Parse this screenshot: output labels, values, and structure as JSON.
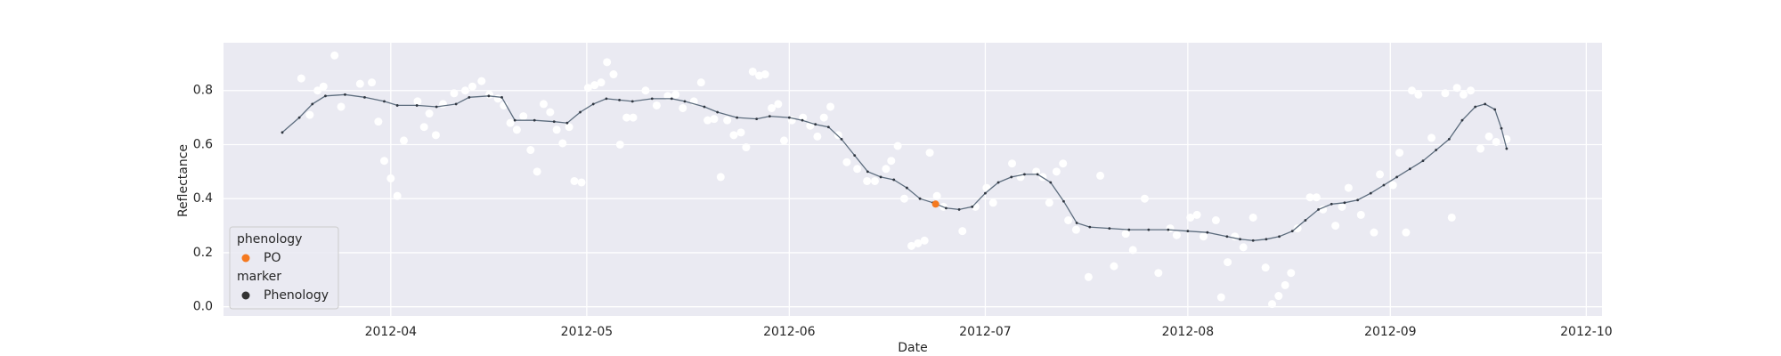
{
  "chart_data": {
    "type": "scatter",
    "xlabel": "Date",
    "ylabel": "Reflectance",
    "xlim": [
      -25.6,
      185.4
    ],
    "ylim": [
      -0.034,
      0.977
    ],
    "xticks": [
      {
        "value": 0,
        "label": "2012-04"
      },
      {
        "value": 30,
        "label": "2012-05"
      },
      {
        "value": 61,
        "label": "2012-06"
      },
      {
        "value": 91,
        "label": "2012-07"
      },
      {
        "value": 122,
        "label": "2012-08"
      },
      {
        "value": 153,
        "label": "2012-09"
      },
      {
        "value": 183,
        "label": "2012-10"
      }
    ],
    "yticks": [
      {
        "value": 0,
        "label": "0.0"
      },
      0.2,
      0.4,
      0.6,
      0.8
    ],
    "grid": true,
    "background": "#eaeaf2",
    "observations": {
      "color": "#ffffff",
      "x": [
        -13.7,
        -12.4,
        -11.2,
        -10.3,
        -8.6,
        -7.6,
        -4.7,
        -2.9,
        -1.9,
        -1.0,
        0,
        1.0,
        2.0,
        4.1,
        5.1,
        5.9,
        6.9,
        8.0,
        9.7,
        11.4,
        12.5,
        13.9,
        15.1,
        16.4,
        17.3,
        18.3,
        19.3,
        20.3,
        21.4,
        22.4,
        23.4,
        24.4,
        25.4,
        26.3,
        27.3,
        28.1,
        29.2,
        30.2,
        31.2,
        32.2,
        33.1,
        34.1,
        35.1,
        36.1,
        37.1,
        39.0,
        40.7,
        42.4,
        43.6,
        44.7,
        46.4,
        47.5,
        48.5,
        49.5,
        50.5,
        51.5,
        52.5,
        53.6,
        54.4,
        55.4,
        56.4,
        57.3,
        58.3,
        59.3,
        60.2,
        61.4,
        63.1,
        64.2,
        65.3,
        66.3,
        67.3,
        68.5,
        69.8,
        71.4,
        72.9,
        74.1,
        75.8,
        76.6,
        77.6,
        78.6,
        79.7,
        80.7,
        81.7,
        82.5,
        83.6,
        84.6,
        87.5,
        89.5,
        91.2,
        92.2,
        95.1,
        96.4,
        98.8,
        99.8,
        100.8,
        101.9,
        102.9,
        103.7,
        104.9,
        106.8,
        108.6,
        110.7,
        112.5,
        113.6,
        115.4,
        117.5,
        119.3,
        120.3,
        122.4,
        123.4,
        124.4,
        126.3,
        127.1,
        128.1,
        129.2,
        130.5,
        132.0,
        133.9,
        134.9,
        135.9,
        136.9,
        137.8,
        138.8,
        140.7,
        141.7,
        142.7,
        144.6,
        145.6,
        146.6,
        148.5,
        150.5,
        151.4,
        153.4,
        154.4,
        155.4,
        156.3,
        157.3,
        159.3,
        161.4,
        162.4,
        163.2,
        164.2,
        165.3,
        166.8,
        168.1,
        169.2,
        170.8
      ],
      "values": [
        0.845,
        0.71,
        0.8,
        0.815,
        0.93,
        0.74,
        0.825,
        0.83,
        0.685,
        0.54,
        0.475,
        0.41,
        0.615,
        0.76,
        0.665,
        0.715,
        0.635,
        0.75,
        0.79,
        0.8,
        0.815,
        0.835,
        0.785,
        0.77,
        0.745,
        0.68,
        0.655,
        0.705,
        0.58,
        0.5,
        0.75,
        0.72,
        0.655,
        0.605,
        0.665,
        0.465,
        0.46,
        0.81,
        0.82,
        0.83,
        0.905,
        0.86,
        0.6,
        0.7,
        0.7,
        0.8,
        0.745,
        0.78,
        0.785,
        0.735,
        0.76,
        0.83,
        0.69,
        0.695,
        0.48,
        0.69,
        0.635,
        0.645,
        0.59,
        0.87,
        0.855,
        0.86,
        0.735,
        0.75,
        0.615,
        0.69,
        0.7,
        0.67,
        0.63,
        0.7,
        0.74,
        0.635,
        0.535,
        0.51,
        0.465,
        0.465,
        0.51,
        0.54,
        0.595,
        0.4,
        0.225,
        0.235,
        0.245,
        0.57,
        0.41,
        0.37,
        0.28,
        0.37,
        0.44,
        0.385,
        0.53,
        0.48,
        0.5,
        0.48,
        0.385,
        0.5,
        0.53,
        0.32,
        0.285,
        0.11,
        0.485,
        0.15,
        0.27,
        0.21,
        0.4,
        0.125,
        0.29,
        0.265,
        0.33,
        0.34,
        0.26,
        0.32,
        0.035,
        0.165,
        0.26,
        0.22,
        0.33,
        0.145,
        0.01,
        0.04,
        0.08,
        0.125,
        0.29,
        0.405,
        0.405,
        0.36,
        0.3,
        0.37,
        0.44,
        0.34,
        0.275,
        0.49,
        0.45,
        0.57,
        0.275,
        0.8,
        0.785,
        0.625,
        0.79,
        0.33,
        0.81,
        0.785,
        0.8,
        0.585,
        0.63,
        0.61,
        0.62
      ]
    },
    "curve": {
      "color": "#5d6d7e",
      "point_color": "#2f3640",
      "x": [
        -16.6,
        -14,
        -12,
        -10,
        -7,
        -4,
        -1,
        1,
        4,
        7,
        10,
        12,
        15,
        17,
        19,
        22,
        25,
        27,
        29,
        31,
        33,
        35,
        37,
        40,
        43,
        45,
        48,
        50,
        53,
        56,
        58,
        61,
        63,
        65,
        67,
        69,
        71,
        73,
        75,
        77,
        79,
        81,
        83,
        85,
        87,
        89,
        91,
        93,
        95,
        97,
        99,
        101,
        103,
        105,
        107,
        110,
        113,
        116,
        119,
        122,
        125,
        128,
        130,
        132,
        134,
        136,
        138,
        140,
        142,
        144,
        146,
        148,
        150,
        152,
        154,
        156,
        158,
        160,
        162,
        164,
        166,
        167.5,
        169,
        170,
        170.8
      ],
      "values": [
        0.645,
        0.7,
        0.75,
        0.78,
        0.785,
        0.775,
        0.76,
        0.745,
        0.745,
        0.74,
        0.75,
        0.775,
        0.78,
        0.775,
        0.69,
        0.69,
        0.685,
        0.68,
        0.72,
        0.75,
        0.77,
        0.765,
        0.76,
        0.77,
        0.77,
        0.76,
        0.74,
        0.72,
        0.7,
        0.695,
        0.705,
        0.7,
        0.69,
        0.675,
        0.665,
        0.62,
        0.56,
        0.5,
        0.48,
        0.47,
        0.44,
        0.4,
        0.385,
        0.365,
        0.36,
        0.37,
        0.42,
        0.46,
        0.48,
        0.49,
        0.49,
        0.46,
        0.39,
        0.31,
        0.295,
        0.29,
        0.285,
        0.285,
        0.285,
        0.28,
        0.275,
        0.26,
        0.25,
        0.245,
        0.25,
        0.26,
        0.28,
        0.32,
        0.36,
        0.38,
        0.385,
        0.395,
        0.42,
        0.45,
        0.48,
        0.51,
        0.54,
        0.58,
        0.62,
        0.69,
        0.74,
        0.75,
        0.73,
        0.66,
        0.585
      ]
    },
    "po": {
      "color": "#f5791f",
      "x": [
        83.4
      ],
      "values": [
        0.38
      ]
    },
    "legend_position": "lower left",
    "legend": [
      {
        "title": "phenology",
        "entries": [
          {
            "name": "PO",
            "color": "#f5791f"
          }
        ]
      },
      {
        "title": "marker",
        "entries": [
          {
            "name": "Phenology",
            "color": "#333333"
          }
        ]
      }
    ]
  }
}
